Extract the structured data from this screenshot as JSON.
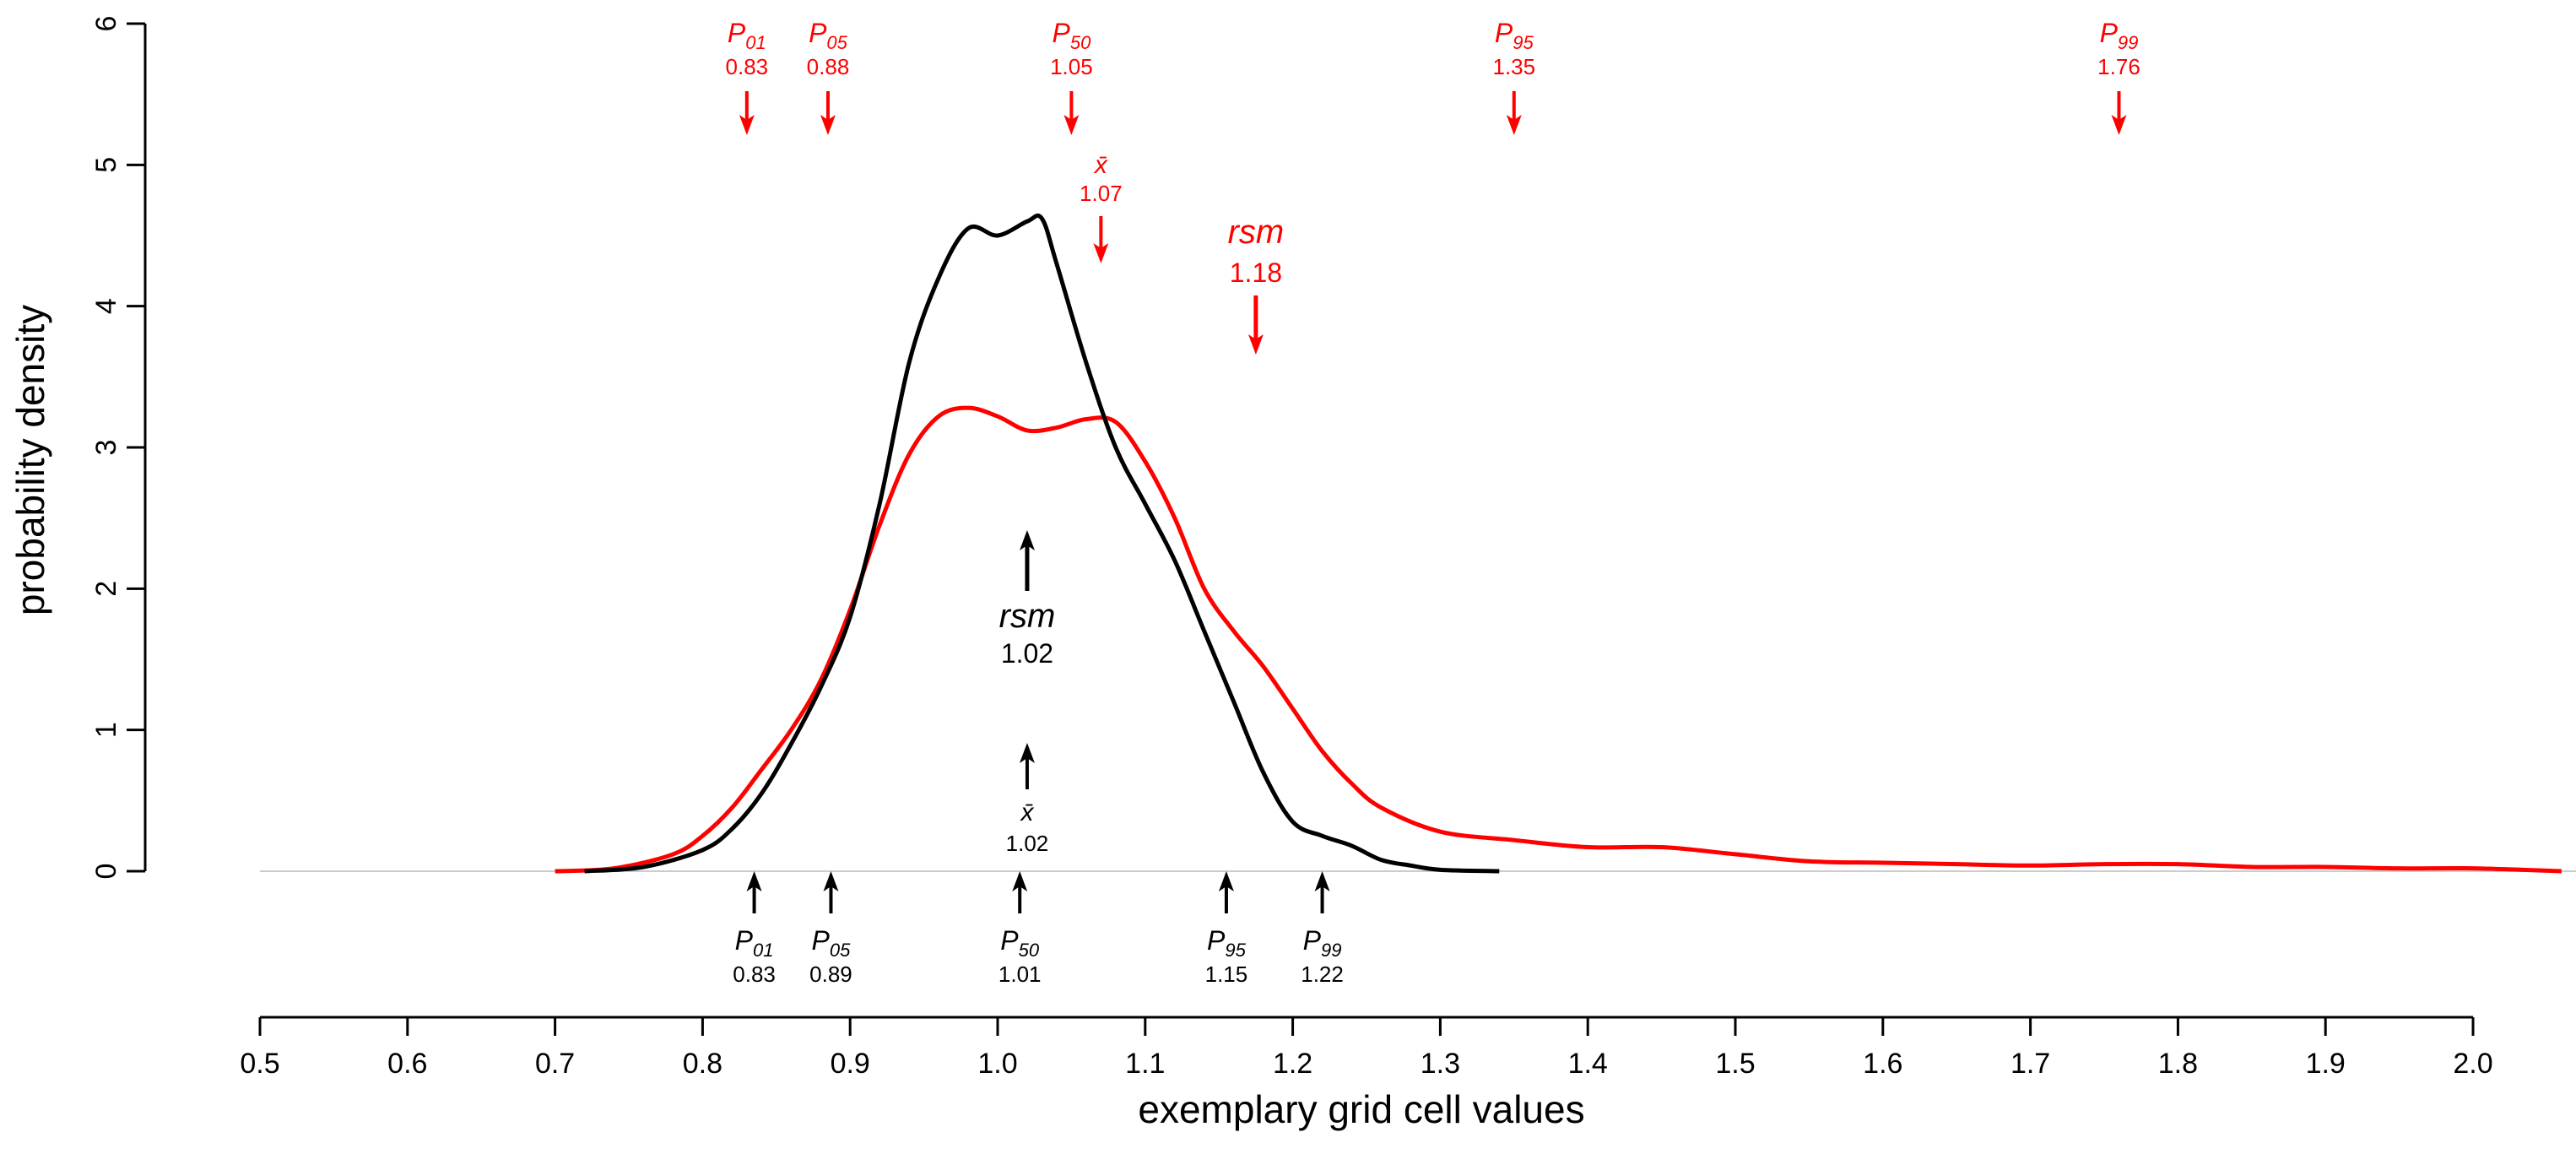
{
  "chart_data": {
    "type": "line",
    "title": "",
    "xlabel": "exemplary grid cell values",
    "ylabel": "probability density",
    "xlim": [
      0.5,
      2.0
    ],
    "ylim": [
      0,
      6
    ],
    "x_ticks": [
      "0.5",
      "0.6",
      "0.7",
      "0.8",
      "0.9",
      "1.0",
      "1.1",
      "1.2",
      "1.3",
      "1.4",
      "1.5",
      "1.6",
      "1.7",
      "1.8",
      "1.9",
      "2.0"
    ],
    "y_ticks": [
      "0",
      "1",
      "2",
      "3",
      "4",
      "5",
      "6"
    ],
    "colors": {
      "black_series": "#000000",
      "red_series": "#ff0000",
      "baseline": "#cccccc"
    },
    "series": [
      {
        "name": "black",
        "color": "#000000",
        "x": [
          0.72,
          0.76,
          0.8,
          0.82,
          0.84,
          0.86,
          0.88,
          0.9,
          0.92,
          0.94,
          0.96,
          0.98,
          1.0,
          1.02,
          1.03,
          1.04,
          1.06,
          1.08,
          1.1,
          1.12,
          1.14,
          1.16,
          1.18,
          1.2,
          1.22,
          1.24,
          1.26,
          1.28,
          1.3,
          1.34
        ],
        "y": [
          0.0,
          0.03,
          0.15,
          0.3,
          0.55,
          0.9,
          1.3,
          1.8,
          2.6,
          3.6,
          4.2,
          4.55,
          4.5,
          4.6,
          4.62,
          4.3,
          3.6,
          3.0,
          2.6,
          2.2,
          1.7,
          1.2,
          0.7,
          0.35,
          0.25,
          0.18,
          0.08,
          0.04,
          0.01,
          0.0
        ]
      },
      {
        "name": "red",
        "color": "#ff0000",
        "x": [
          0.7,
          0.74,
          0.78,
          0.8,
          0.82,
          0.84,
          0.86,
          0.88,
          0.9,
          0.92,
          0.94,
          0.96,
          0.98,
          1.0,
          1.02,
          1.04,
          1.06,
          1.08,
          1.1,
          1.12,
          1.14,
          1.16,
          1.18,
          1.2,
          1.22,
          1.24,
          1.26,
          1.3,
          1.35,
          1.4,
          1.45,
          1.5,
          1.55,
          1.6,
          1.65,
          1.7,
          1.75,
          1.8,
          1.85,
          1.9,
          1.95,
          2.0,
          2.06
        ],
        "y": [
          0.0,
          0.02,
          0.12,
          0.25,
          0.45,
          0.72,
          1.0,
          1.35,
          1.85,
          2.45,
          2.95,
          3.22,
          3.28,
          3.22,
          3.12,
          3.14,
          3.2,
          3.18,
          2.9,
          2.5,
          2.0,
          1.7,
          1.45,
          1.15,
          0.85,
          0.62,
          0.45,
          0.28,
          0.22,
          0.17,
          0.17,
          0.12,
          0.07,
          0.06,
          0.05,
          0.04,
          0.05,
          0.05,
          0.03,
          0.03,
          0.02,
          0.02,
          0.0
        ]
      }
    ],
    "red_annotations": [
      {
        "label": "P",
        "sub": "01",
        "value": "0.83",
        "x": 0.83,
        "row": "top"
      },
      {
        "label": "P",
        "sub": "05",
        "value": "0.88",
        "x": 0.885,
        "row": "top"
      },
      {
        "label": "P",
        "sub": "50",
        "value": "1.05",
        "x": 1.05,
        "row": "top"
      },
      {
        "label": "P",
        "sub": "95",
        "value": "1.35",
        "x": 1.35,
        "row": "top"
      },
      {
        "label": "P",
        "sub": "99",
        "value": "1.76",
        "x": 1.76,
        "row": "top"
      },
      {
        "label": "x̄",
        "sub": "",
        "value": "1.07",
        "x": 1.07,
        "row": "mean"
      },
      {
        "label": "rsm",
        "sub": "",
        "value": "1.18",
        "x": 1.175,
        "row": "rsm"
      }
    ],
    "black_annotations": [
      {
        "label": "P",
        "sub": "01",
        "value": "0.83",
        "x": 0.835,
        "row": "bottom"
      },
      {
        "label": "P",
        "sub": "05",
        "value": "0.89",
        "x": 0.887,
        "row": "bottom"
      },
      {
        "label": "P",
        "sub": "50",
        "value": "1.01",
        "x": 1.015,
        "row": "bottom"
      },
      {
        "label": "P",
        "sub": "95",
        "value": "1.15",
        "x": 1.155,
        "row": "bottom"
      },
      {
        "label": "P",
        "sub": "99",
        "value": "1.22",
        "x": 1.22,
        "row": "bottom"
      },
      {
        "label": "x̄",
        "sub": "",
        "value": "1.02",
        "x": 1.02,
        "row": "mean"
      },
      {
        "label": "rsm",
        "sub": "",
        "value": "1.02",
        "x": 1.02,
        "row": "rsm"
      }
    ]
  }
}
